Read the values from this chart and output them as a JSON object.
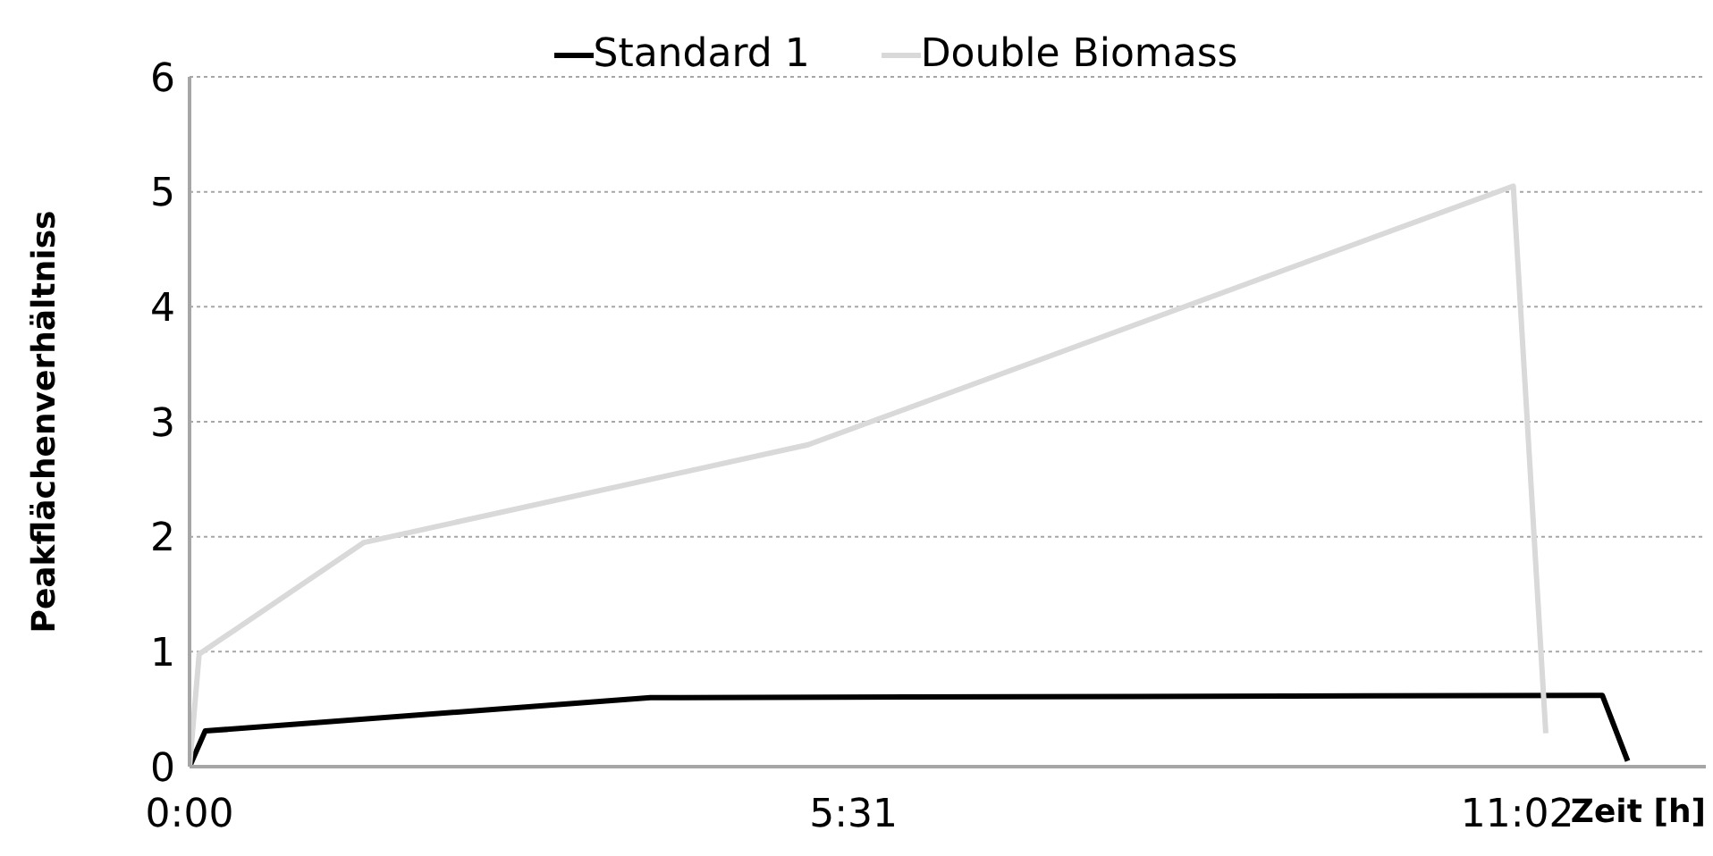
{
  "chart_data": {
    "type": "line",
    "xlabel": "Zeit [h]",
    "ylabel": "Peakflächenverhältniss",
    "series": [
      {
        "name": "Standard 1",
        "color": "#000000",
        "x": [
          0,
          0.13,
          3.83,
          11.74,
          11.95
        ],
        "values": [
          0,
          0.31,
          0.6,
          0.62,
          0.05
        ]
      },
      {
        "name": "Double Biomass",
        "color": "#d9d9d9",
        "x": [
          0,
          0.08,
          1.45,
          5.14,
          11.0,
          11.27
        ],
        "values": [
          0,
          0.98,
          1.95,
          2.8,
          5.05,
          0.29
        ]
      }
    ],
    "xlim": [
      0,
      12.6
    ],
    "xticks": [
      {
        "value": 0,
        "label": "0:00"
      },
      {
        "value": 5.5167,
        "label": "5:31"
      },
      {
        "value": 11.0333,
        "label": "11:02"
      }
    ],
    "ylim": [
      0,
      6
    ],
    "yticks": [
      0,
      1,
      2,
      3,
      4,
      5,
      6
    ],
    "grid": "y",
    "legend": "top",
    "marker": "none",
    "line_style": "solid"
  }
}
